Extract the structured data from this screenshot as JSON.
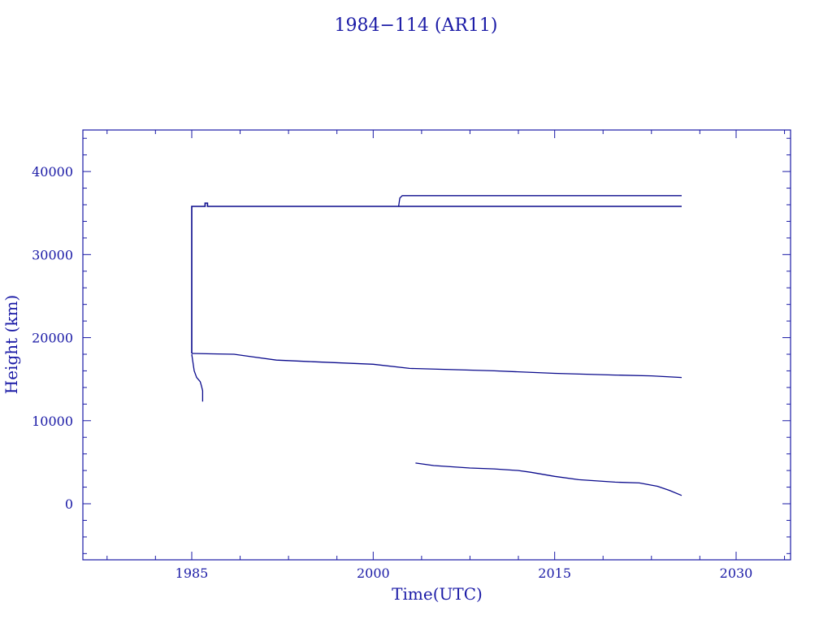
{
  "chart_data": {
    "type": "line",
    "title": "1984−114 (AR11)",
    "xlabel": "Time(UTC)",
    "ylabel": "Height (km)",
    "xlim": [
      1976,
      2034.5
    ],
    "ylim": [
      -6750,
      45000
    ],
    "x_ticks": [
      1985,
      2000,
      2015,
      2030
    ],
    "x_tick_labels": [
      "1985",
      "2000",
      "2015",
      "2030"
    ],
    "x_minor_ticks": [
      1978,
      1982,
      1989,
      1993,
      1997,
      2004,
      2008,
      2012,
      2019,
      2023,
      2027,
      2034
    ],
    "y_ticks": [
      0,
      10000,
      20000,
      30000,
      40000
    ],
    "y_tick_labels": [
      "0",
      "10000",
      "20000",
      "30000",
      "40000"
    ],
    "grid": false,
    "color": "#0a0a8c",
    "series": [
      {
        "x": [
          1985.0,
          1985.0,
          1986.1,
          1986.1,
          1986.3,
          1986.3,
          2025.5
        ],
        "y": [
          18100,
          35800,
          35800,
          36200,
          36200,
          35800,
          35800
        ]
      },
      {
        "x": [
          2002.1,
          2002.2,
          2002.4,
          2025.5
        ],
        "y": [
          35800,
          36800,
          37100,
          37100
        ]
      },
      {
        "x": [
          1985.0,
          1988.5,
          1990,
          1992,
          1995,
          2000,
          2003,
          2010,
          2015,
          2020,
          2023,
          2025.5
        ],
        "y": [
          18100,
          18000,
          17700,
          17300,
          17100,
          16800,
          16300,
          16000,
          15700,
          15500,
          15400,
          15200
        ]
      },
      {
        "x": [
          1985.0,
          1985.1,
          1985.2,
          1985.4,
          1985.7,
          1985.8,
          1985.9,
          1985.9
        ],
        "y": [
          18000,
          17000,
          16000,
          15200,
          14700,
          14200,
          13600,
          12300
        ]
      },
      {
        "x": [
          2003.5,
          2005,
          2008,
          2010,
          2012,
          2013,
          2015,
          2017,
          2020,
          2022,
          2023.5,
          2024.5,
          2025.5
        ],
        "y": [
          4900,
          4600,
          4300,
          4200,
          4000,
          3800,
          3300,
          2900,
          2600,
          2500,
          2100,
          1600,
          1000
        ]
      }
    ]
  }
}
